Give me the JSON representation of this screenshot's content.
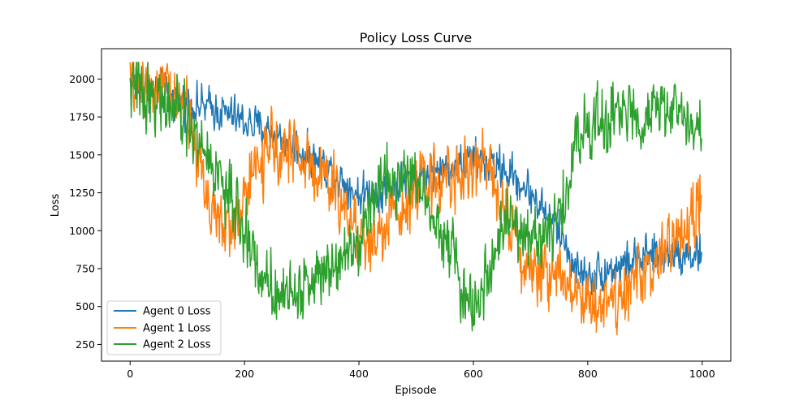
{
  "chart_data": {
    "type": "line",
    "title": "Policy Loss Curve",
    "xlabel": "Episode",
    "ylabel": "Loss",
    "xlim": [
      -50,
      1050
    ],
    "ylim": [
      140,
      2200
    ],
    "xticks": [
      0,
      200,
      400,
      600,
      800,
      1000
    ],
    "yticks": [
      250,
      500,
      750,
      1000,
      1250,
      1500,
      1750,
      2000
    ],
    "grid": false,
    "legend_position": "lower-left",
    "num_points": 1000,
    "series": [
      {
        "name": "Agent 0 Loss",
        "color": "#1f77b4",
        "noise": 85,
        "trend_x": [
          0,
          100,
          150,
          200,
          250,
          300,
          350,
          400,
          450,
          500,
          550,
          600,
          650,
          700,
          750,
          780,
          800,
          850,
          900,
          950,
          1000
        ],
        "trend_y": [
          1980,
          1840,
          1800,
          1720,
          1640,
          1520,
          1400,
          1240,
          1270,
          1360,
          1410,
          1470,
          1420,
          1250,
          1000,
          740,
          700,
          760,
          820,
          860,
          840
        ]
      },
      {
        "name": "Agent 1 Loss",
        "color": "#ff7f0e",
        "noise": 140,
        "trend_x": [
          0,
          50,
          100,
          130,
          160,
          180,
          200,
          230,
          260,
          300,
          350,
          400,
          420,
          460,
          500,
          550,
          600,
          630,
          660,
          700,
          750,
          800,
          850,
          900,
          950,
          1000
        ],
        "trend_y": [
          1980,
          1960,
          1800,
          1300,
          1000,
          1050,
          1250,
          1450,
          1580,
          1480,
          1300,
          1000,
          900,
          1100,
          1300,
          1350,
          1400,
          1450,
          1100,
          700,
          750,
          520,
          560,
          720,
          900,
          1200
        ]
      },
      {
        "name": "Agent 2 Loss",
        "color": "#2ca02c",
        "noise": 135,
        "trend_x": [
          0,
          50,
          100,
          150,
          200,
          230,
          260,
          300,
          350,
          400,
          440,
          500,
          540,
          570,
          590,
          610,
          630,
          660,
          700,
          740,
          760,
          780,
          800,
          850,
          900,
          950,
          990,
          1000
        ],
        "trend_y": [
          1950,
          1870,
          1700,
          1400,
          1000,
          700,
          600,
          600,
          800,
          950,
          1350,
          1350,
          1050,
          800,
          450,
          550,
          800,
          1050,
          950,
          1000,
          1200,
          1600,
          1700,
          1750,
          1780,
          1800,
          1700,
          1600
        ]
      }
    ]
  }
}
